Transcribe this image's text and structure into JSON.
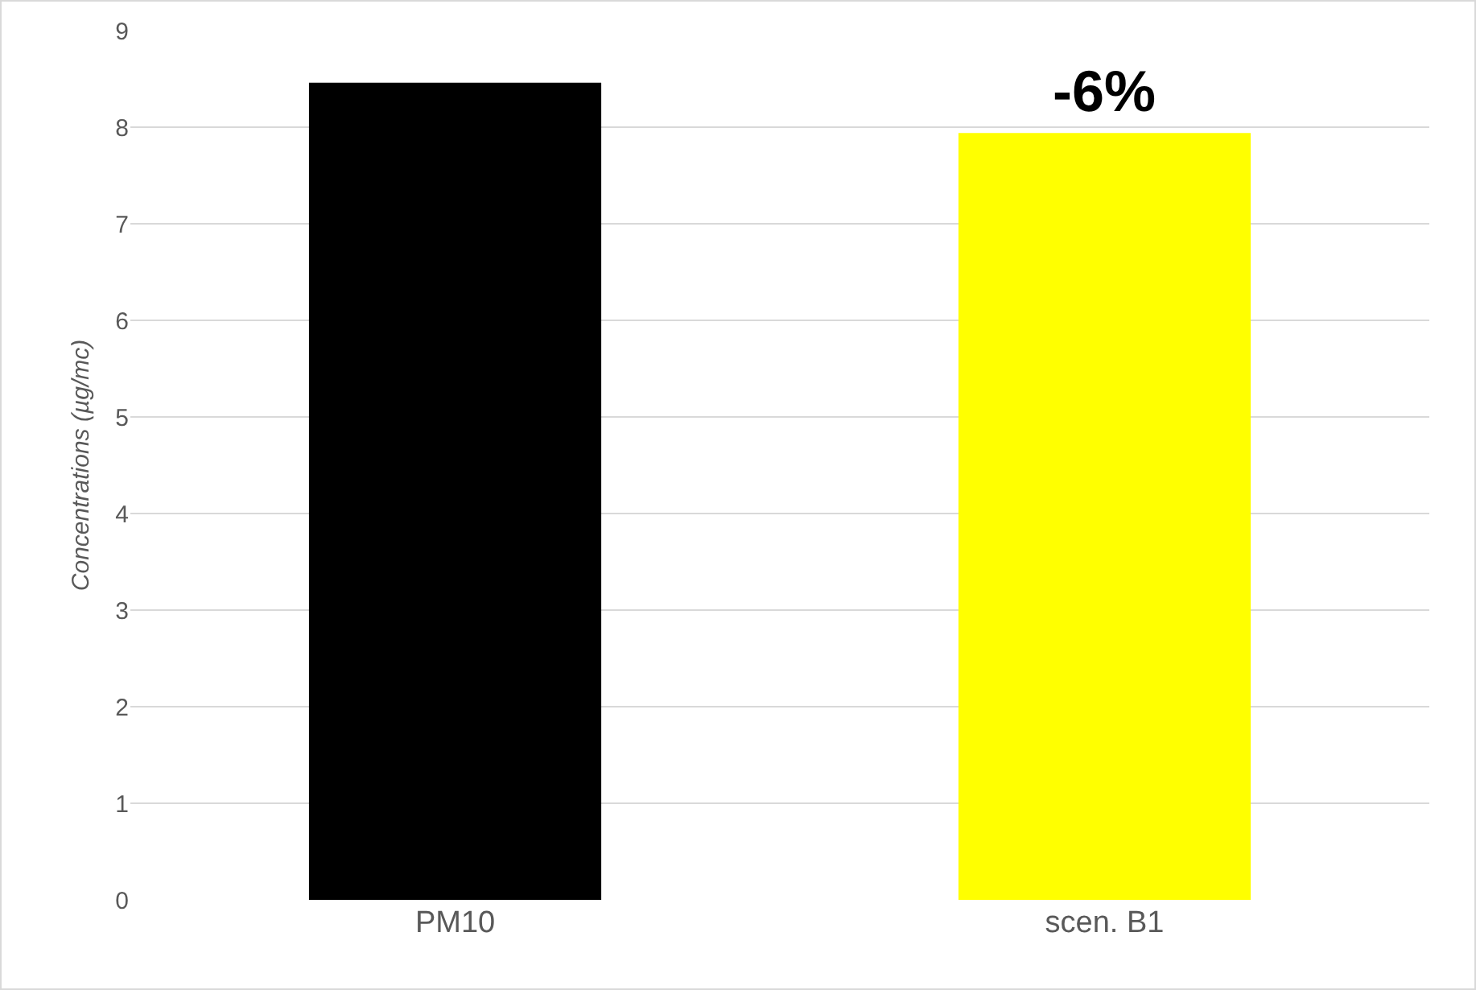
{
  "chart_data": {
    "type": "bar",
    "ylabel": "Concentrations (µg/mc)",
    "categories": [
      "PM10",
      "scen. B1"
    ],
    "values": [
      8.46,
      7.94
    ],
    "colors": [
      "#000000",
      "#ffff00"
    ],
    "ylim": [
      0,
      9
    ],
    "yticks": [
      0,
      1,
      2,
      3,
      4,
      5,
      6,
      7,
      8,
      9
    ],
    "grid": "y",
    "annotations": [
      {
        "text": "-6%",
        "x": "scen. B1",
        "y": 7.94
      }
    ]
  }
}
